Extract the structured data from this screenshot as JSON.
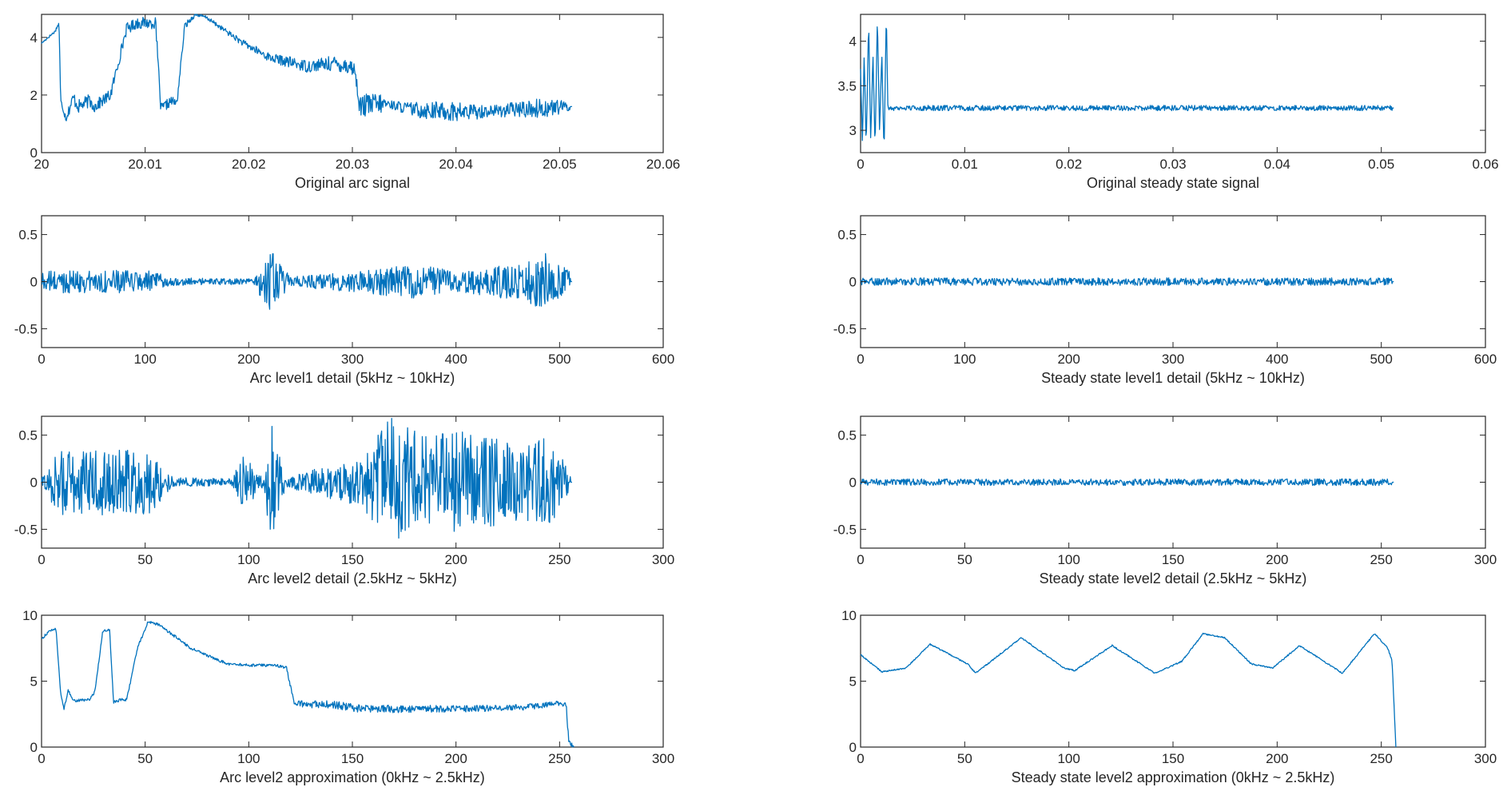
{
  "colors": {
    "line": "#0072bd",
    "axes": "#262626",
    "background": "#ffffff"
  },
  "chart_data": [
    {
      "id": "arc-original",
      "type": "line",
      "title": "",
      "xlabel": "Original arc signal",
      "ylabel": "",
      "xlim": [
        20,
        20.06
      ],
      "ylim": [
        0,
        4.8
      ],
      "xticks": [
        20,
        20.01,
        20.02,
        20.03,
        20.04,
        20.05,
        20.06
      ],
      "xtick_labels": [
        "20",
        "20.01",
        "20.02",
        "20.03",
        "20.04",
        "20.05",
        "20.06"
      ],
      "yticks": [
        0,
        2,
        4
      ],
      "ytick_labels": [
        "0",
        "2",
        "4"
      ],
      "series": [
        {
          "x_start": 20,
          "x_end": 20.0512,
          "shape": [
            [
              0,
              3.8
            ],
            [
              0.025,
              4.2
            ],
            [
              0.033,
              4.5
            ],
            [
              0.036,
              1.8
            ],
            [
              0.046,
              1.2
            ],
            [
              0.06,
              1.9
            ],
            [
              0.07,
              1.6
            ],
            [
              0.09,
              1.8
            ],
            [
              0.1,
              1.6
            ],
            [
              0.13,
              2.0
            ],
            [
              0.16,
              4.3
            ],
            [
              0.18,
              4.5
            ],
            [
              0.215,
              4.5
            ],
            [
              0.225,
              1.5
            ],
            [
              0.245,
              1.8
            ],
            [
              0.255,
              1.7
            ],
            [
              0.27,
              4.4
            ],
            [
              0.29,
              4.8
            ],
            [
              0.31,
              4.7
            ],
            [
              0.38,
              3.8
            ],
            [
              0.43,
              3.3
            ],
            [
              0.5,
              3.0
            ],
            [
              0.55,
              3.1
            ],
            [
              0.58,
              3.0
            ],
            [
              0.59,
              2.9
            ],
            [
              0.6,
              1.6
            ],
            [
              0.65,
              1.7
            ],
            [
              0.7,
              1.5
            ],
            [
              0.8,
              1.4
            ],
            [
              0.9,
              1.5
            ],
            [
              1.0,
              1.6
            ]
          ],
          "noise": [
            [
              0.0,
              0.03
            ],
            [
              0.03,
              0.05
            ],
            [
              0.06,
              0.25
            ],
            [
              0.12,
              0.2
            ],
            [
              0.225,
              0.2
            ],
            [
              0.3,
              0.05
            ],
            [
              0.6,
              0.3
            ],
            [
              0.62,
              0.5
            ],
            [
              0.66,
              0.15
            ],
            [
              0.72,
              0.3
            ],
            [
              0.78,
              0.35
            ],
            [
              0.85,
              0.2
            ],
            [
              0.95,
              0.35
            ],
            [
              1.0,
              0.15
            ]
          ]
        }
      ]
    },
    {
      "id": "steady-original",
      "type": "line",
      "title": "",
      "xlabel": "Original steady state signal",
      "ylabel": "",
      "xlim": [
        0,
        0.06
      ],
      "ylim": [
        2.75,
        4.3
      ],
      "xticks": [
        0,
        0.01,
        0.02,
        0.03,
        0.04,
        0.05,
        0.06
      ],
      "xtick_labels": [
        "0",
        "0.01",
        "0.02",
        "0.03",
        "0.04",
        "0.05",
        "0.06"
      ],
      "yticks": [
        3,
        3.5,
        4
      ],
      "ytick_labels": [
        "3",
        "3.5",
        "4"
      ],
      "series": [
        {
          "x_start": 0,
          "x_end": 0.0512,
          "shape": [
            [
              0,
              3.7
            ],
            [
              0.0035,
              2.85
            ],
            [
              0.0068,
              3.88
            ],
            [
              0.0105,
              2.8
            ],
            [
              0.0152,
              4.25
            ],
            [
              0.019,
              2.85
            ],
            [
              0.0233,
              3.85
            ],
            [
              0.0272,
              2.78
            ],
            [
              0.0315,
              4.3
            ],
            [
              0.0357,
              2.98
            ],
            [
              0.0398,
              3.88
            ],
            [
              0.044,
              2.75
            ],
            [
              0.0483,
              4.32
            ],
            [
              0.0512,
              3.25
            ]
          ],
          "noise": [
            [
              0,
              0.03
            ],
            [
              1,
              0.03
            ]
          ]
        }
      ]
    },
    {
      "id": "arc-level1",
      "type": "line",
      "title": "",
      "xlabel": "Arc level1 detail (5kHz ~ 10kHz)",
      "ylabel": "",
      "xlim": [
        0,
        600
      ],
      "ylim": [
        -0.7,
        0.7
      ],
      "xticks": [
        0,
        100,
        200,
        300,
        400,
        500,
        600
      ],
      "xtick_labels": [
        "0",
        "100",
        "200",
        "300",
        "400",
        "500",
        "600"
      ],
      "yticks": [
        -0.5,
        0,
        0.5
      ],
      "ytick_labels": [
        "-0.5",
        "0",
        "0.5"
      ],
      "series": [
        {
          "x_start": 0,
          "x_end": 512,
          "shape": [
            [
              0,
              0
            ],
            [
              1,
              0
            ]
          ],
          "noise": [
            [
              0,
              0.12
            ],
            [
              0.2,
              0.12
            ],
            [
              0.25,
              0.04
            ],
            [
              0.4,
              0.03
            ],
            [
              0.43,
              0.35
            ],
            [
              0.47,
              0.05
            ],
            [
              0.6,
              0.12
            ],
            [
              0.7,
              0.18
            ],
            [
              0.8,
              0.12
            ],
            [
              0.9,
              0.2
            ],
            [
              0.95,
              0.3
            ],
            [
              1,
              0.1
            ]
          ]
        }
      ]
    },
    {
      "id": "steady-level1",
      "type": "line",
      "title": "",
      "xlabel": "Steady state level1 detail (5kHz ~ 10kHz)",
      "ylabel": "",
      "xlim": [
        0,
        600
      ],
      "ylim": [
        -0.7,
        0.7
      ],
      "xticks": [
        0,
        100,
        200,
        300,
        400,
        500,
        600
      ],
      "xtick_labels": [
        "0",
        "100",
        "200",
        "300",
        "400",
        "500",
        "600"
      ],
      "yticks": [
        -0.5,
        0,
        0.5
      ],
      "ytick_labels": [
        "-0.5",
        "0",
        "0.5"
      ],
      "series": [
        {
          "x_start": 0,
          "x_end": 512,
          "shape": [
            [
              0,
              0
            ],
            [
              1,
              0
            ]
          ],
          "noise": [
            [
              0,
              0.04
            ],
            [
              1,
              0.04
            ]
          ]
        }
      ]
    },
    {
      "id": "arc-level2",
      "type": "line",
      "title": "",
      "xlabel": "Arc level2 detail (2.5kHz ~ 5kHz)",
      "ylabel": "",
      "xlim": [
        0,
        300
      ],
      "ylim": [
        -0.7,
        0.7
      ],
      "xticks": [
        0,
        50,
        100,
        150,
        200,
        250,
        300
      ],
      "xtick_labels": [
        "0",
        "50",
        "100",
        "150",
        "200",
        "250",
        "300"
      ],
      "yticks": [
        -0.5,
        0,
        0.5
      ],
      "ytick_labels": [
        "-0.5",
        "0",
        "0.5"
      ],
      "series": [
        {
          "x_start": 0,
          "x_end": 256,
          "shape": [
            [
              0,
              0
            ],
            [
              1,
              0
            ]
          ],
          "noise": [
            [
              0,
              0.05
            ],
            [
              0.03,
              0.35
            ],
            [
              0.2,
              0.35
            ],
            [
              0.25,
              0.05
            ],
            [
              0.36,
              0.04
            ],
            [
              0.38,
              0.3
            ],
            [
              0.42,
              0.05
            ],
            [
              0.43,
              0.7
            ],
            [
              0.46,
              0.05
            ],
            [
              0.5,
              0.12
            ],
            [
              0.6,
              0.25
            ],
            [
              0.66,
              0.7
            ],
            [
              0.72,
              0.5
            ],
            [
              0.8,
              0.55
            ],
            [
              0.9,
              0.4
            ],
            [
              0.96,
              0.5
            ],
            [
              1,
              0.05
            ]
          ]
        }
      ]
    },
    {
      "id": "steady-level2",
      "type": "line",
      "title": "",
      "xlabel": "Steady state level2 detail (2.5kHz ~ 5kHz)",
      "ylabel": "",
      "xlim": [
        0,
        300
      ],
      "ylim": [
        -0.7,
        0.7
      ],
      "xticks": [
        0,
        50,
        100,
        150,
        200,
        250,
        300
      ],
      "xtick_labels": [
        "0",
        "50",
        "100",
        "150",
        "200",
        "250",
        "300"
      ],
      "yticks": [
        -0.5,
        0,
        0.5
      ],
      "ytick_labels": [
        "-0.5",
        "0",
        "0.5"
      ],
      "series": [
        {
          "x_start": 0,
          "x_end": 256,
          "shape": [
            [
              0,
              0
            ],
            [
              1,
              0
            ]
          ],
          "noise": [
            [
              0,
              0.035
            ],
            [
              1,
              0.035
            ]
          ]
        }
      ]
    },
    {
      "id": "arc-approx",
      "type": "line",
      "title": "",
      "xlabel": "Arc level2  approximation (0kHz ~ 2.5kHz)",
      "ylabel": "",
      "xlim": [
        0,
        300
      ],
      "ylim": [
        0,
        10
      ],
      "xticks": [
        0,
        50,
        100,
        150,
        200,
        250,
        300
      ],
      "xtick_labels": [
        "0",
        "50",
        "100",
        "150",
        "200",
        "250",
        "300"
      ],
      "yticks": [
        0,
        5,
        10
      ],
      "ytick_labels": [
        "0",
        "5",
        "10"
      ],
      "series": [
        {
          "x_start": 0,
          "x_end": 257,
          "shape": [
            [
              0,
              8.2
            ],
            [
              0.015,
              8.8
            ],
            [
              0.027,
              9.0
            ],
            [
              0.036,
              4.0
            ],
            [
              0.042,
              2.9
            ],
            [
              0.05,
              4.3
            ],
            [
              0.06,
              3.5
            ],
            [
              0.09,
              3.6
            ],
            [
              0.1,
              4.2
            ],
            [
              0.115,
              8.8
            ],
            [
              0.128,
              8.9
            ],
            [
              0.135,
              3.4
            ],
            [
              0.15,
              3.6
            ],
            [
              0.16,
              3.6
            ],
            [
              0.18,
              7.5
            ],
            [
              0.2,
              9.5
            ],
            [
              0.22,
              9.3
            ],
            [
              0.28,
              7.5
            ],
            [
              0.32,
              6.8
            ],
            [
              0.35,
              6.3
            ],
            [
              0.4,
              6.2
            ],
            [
              0.44,
              6.2
            ],
            [
              0.46,
              6.0
            ],
            [
              0.475,
              3.3
            ],
            [
              0.55,
              3.2
            ],
            [
              0.6,
              2.9
            ],
            [
              0.7,
              2.9
            ],
            [
              0.8,
              2.9
            ],
            [
              0.9,
              3.0
            ],
            [
              0.97,
              3.3
            ],
            [
              0.985,
              3.2
            ],
            [
              0.99,
              0.5
            ],
            [
              1.0,
              0
            ]
          ],
          "noise": [
            [
              0,
              0.1
            ],
            [
              0.45,
              0.1
            ],
            [
              0.5,
              0.3
            ],
            [
              0.6,
              0.3
            ],
            [
              0.8,
              0.25
            ],
            [
              1,
              0.2
            ]
          ]
        }
      ]
    },
    {
      "id": "steady-approx",
      "type": "line",
      "title": "",
      "xlabel": "Steady state level2 approximation (0kHz ~ 2.5kHz)",
      "ylabel": "",
      "xlim": [
        0,
        300
      ],
      "ylim": [
        0,
        10
      ],
      "xticks": [
        0,
        50,
        100,
        150,
        200,
        250,
        300
      ],
      "xtick_labels": [
        "0",
        "50",
        "100",
        "150",
        "200",
        "250",
        "300"
      ],
      "yticks": [
        0,
        5,
        10
      ],
      "ytick_labels": [
        "0",
        "5",
        "10"
      ],
      "series": [
        {
          "x_start": 0,
          "x_end": 257,
          "shape": [
            [
              0,
              7.0
            ],
            [
              0.04,
              5.7
            ],
            [
              0.085,
              6.0
            ],
            [
              0.13,
              7.8
            ],
            [
              0.2,
              6.3
            ],
            [
              0.215,
              5.6
            ],
            [
              0.3,
              8.3
            ],
            [
              0.38,
              6.0
            ],
            [
              0.4,
              5.8
            ],
            [
              0.47,
              7.7
            ],
            [
              0.55,
              5.6
            ],
            [
              0.6,
              6.5
            ],
            [
              0.64,
              8.6
            ],
            [
              0.68,
              8.3
            ],
            [
              0.73,
              6.3
            ],
            [
              0.77,
              6.0
            ],
            [
              0.82,
              7.7
            ],
            [
              0.9,
              5.6
            ],
            [
              0.96,
              8.6
            ],
            [
              0.985,
              7.5
            ],
            [
              0.993,
              6.5
            ],
            [
              1.0,
              0
            ]
          ],
          "noise": [
            [
              0,
              0.05
            ],
            [
              1,
              0.05
            ]
          ]
        }
      ]
    }
  ]
}
